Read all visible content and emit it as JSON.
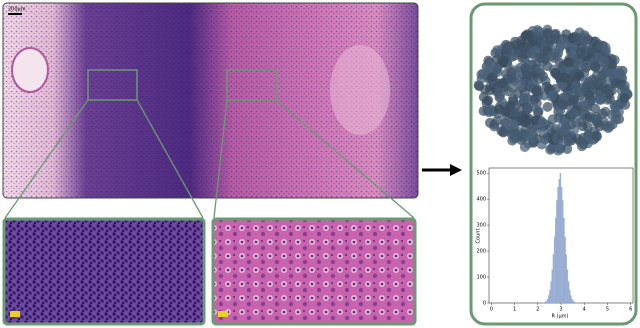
{
  "figure": {
    "scale_label": "200μm"
  },
  "chart_data": {
    "type": "histogram",
    "xlabel": "R (μm)",
    "ylabel": "Count",
    "color": "#9fb3d6",
    "bins": [
      2.2,
      2.25,
      2.3,
      2.35,
      2.4,
      2.45,
      2.5,
      2.55,
      2.6,
      2.65,
      2.7,
      2.75,
      2.8,
      2.85,
      2.9,
      2.95,
      3.0,
      3.05,
      3.1,
      3.15,
      3.2,
      3.25,
      3.3,
      3.35,
      3.4,
      3.45,
      3.5,
      3.55,
      3.6,
      3.65,
      3.7
    ],
    "values": [
      1,
      2,
      4,
      8,
      15,
      29,
      50,
      83,
      128,
      187,
      255,
      327,
      395,
      447,
      476,
      500,
      447,
      395,
      327,
      255,
      187,
      128,
      83,
      50,
      29,
      15,
      8,
      4,
      2,
      1
    ],
    "xlim": [
      -0.1,
      6.1
    ],
    "ylim": [
      0,
      520
    ],
    "xticks": [
      0,
      1,
      2,
      3,
      4,
      5,
      6
    ],
    "yticks": [
      0,
      100,
      200,
      300,
      400,
      500
    ]
  }
}
